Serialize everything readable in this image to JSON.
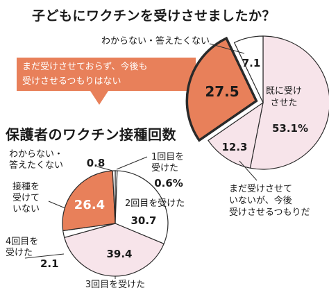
{
  "title": "子どもにワクチンを受けさせましたか？",
  "subtitle": "保護者のワクチン接種回数",
  "banner_lines": [
    "まだ受けさせておらず、今後も",
    "受けさせるつもりはない"
  ],
  "colors": {
    "orange": "#e8805a",
    "pink": "#f7e4ea",
    "white": "#ffffff",
    "stroke": "#2a2a2a"
  },
  "chart_data": [
    {
      "type": "pie",
      "title": "子どもにワクチンを受けさせましたか？",
      "slices": [
        {
          "label": "既に受けさせた",
          "value": 53.1,
          "value_text": "53.1%",
          "label_lines": [
            "既に受け",
            "させた"
          ],
          "color": "pink"
        },
        {
          "label": "まだ受けさせていないが、今後受けさせるつもりだ",
          "value": 12.3,
          "value_text": "12.3",
          "label_lines": [
            "まだ受けさせて",
            "いないが、今後",
            "受けさせるつもりだ"
          ],
          "color": "pink"
        },
        {
          "label": "まだ受けさせておらず、今後も受けさせるつもりはない",
          "value": 27.5,
          "value_text": "27.5",
          "label_lines": [],
          "color": "orange"
        },
        {
          "label": "わからない・答えたくない",
          "value": 7.1,
          "value_text": "7.1",
          "label_lines": [
            "わからない・答えたくない"
          ],
          "color": "white"
        }
      ]
    },
    {
      "type": "pie",
      "title": "保護者のワクチン接種回数",
      "slices": [
        {
          "label": "1回目を受けた",
          "value": 0.6,
          "value_text": "0.6%",
          "label_lines": [
            "1回目を",
            "受けた"
          ],
          "color": "white"
        },
        {
          "label": "2回目を受けた",
          "value": 30.7,
          "value_text": "30.7",
          "label_lines": [
            "2回目を受けた"
          ],
          "color": "white"
        },
        {
          "label": "3回目を受けた",
          "value": 39.4,
          "value_text": "39.4",
          "label_lines": [
            "3回目を受けた"
          ],
          "color": "pink"
        },
        {
          "label": "4回目を受けた",
          "value": 2.1,
          "value_text": "2.1",
          "label_lines": [
            "4回目を",
            "受けた"
          ],
          "color": "white"
        },
        {
          "label": "接種を受けていない",
          "value": 26.4,
          "value_text": "26.4",
          "label_lines": [
            "接種を",
            "受けて",
            "いない"
          ],
          "color": "orange"
        },
        {
          "label": "わからない・答えたくない",
          "value": 0.8,
          "value_text": "0.8",
          "label_lines": [
            "わからない・",
            "答えたくない"
          ],
          "color": "white"
        }
      ]
    }
  ]
}
